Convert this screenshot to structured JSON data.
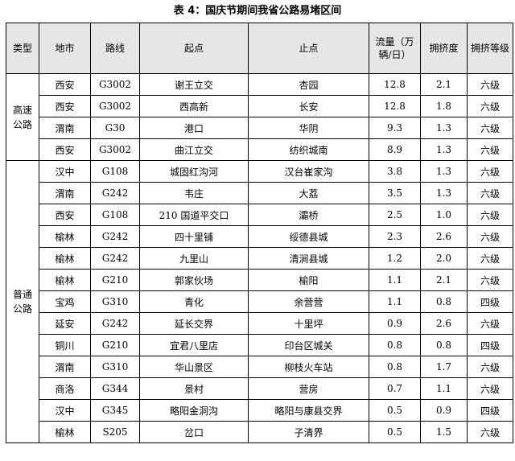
{
  "caption": "表 4：国庆节期间我省公路易堵区间",
  "headers": {
    "type": "类型",
    "city": "地市",
    "route": "路线",
    "start": "起点",
    "end": "止点",
    "flow": "流量（万辆/日）",
    "congestion": "拥挤度",
    "level": "拥挤等级"
  },
  "groups": [
    {
      "label": "高速公路",
      "rows": [
        {
          "city": "西安",
          "route": "G3002",
          "start": "谢王立交",
          "end": "杏园",
          "flow": "12.8",
          "congestion": "2.1",
          "level": "六级"
        },
        {
          "city": "西安",
          "route": "G3002",
          "start": "西高新",
          "end": "长安",
          "flow": "12.8",
          "congestion": "1.8",
          "level": "六级"
        },
        {
          "city": "渭南",
          "route": "G30",
          "start": "港口",
          "end": "华阴",
          "flow": "9.3",
          "congestion": "1.3",
          "level": "六级"
        },
        {
          "city": "西安",
          "route": "G3002",
          "start": "曲江立交",
          "end": "纺织城南",
          "flow": "8.9",
          "congestion": "1.3",
          "level": "六级"
        }
      ]
    },
    {
      "label": "普通公路",
      "rows": [
        {
          "city": "汉中",
          "route": "G108",
          "start": "城固红沟河",
          "end": "汉台崔家沟",
          "flow": "3.8",
          "congestion": "1.3",
          "level": "六级"
        },
        {
          "city": "渭南",
          "route": "G242",
          "start": "韦庄",
          "end": "大荔",
          "flow": "3.5",
          "congestion": "1.3",
          "level": "六级"
        },
        {
          "city": "西安",
          "route": "G108",
          "start": "210 国道平交口",
          "end": "灞桥",
          "flow": "2.5",
          "congestion": "1.0",
          "level": "六级"
        },
        {
          "city": "榆林",
          "route": "G242",
          "start": "四十里铺",
          "end": "绥德县城",
          "flow": "2.3",
          "congestion": "2.6",
          "level": "六级"
        },
        {
          "city": "榆林",
          "route": "G242",
          "start": "九里山",
          "end": "清涧县城",
          "flow": "1.2",
          "congestion": "2.0",
          "level": "六级"
        },
        {
          "city": "榆林",
          "route": "G210",
          "start": "郭家伙场",
          "end": "榆阳",
          "flow": "1.1",
          "congestion": "2.1",
          "level": "六级"
        },
        {
          "city": "宝鸡",
          "route": "G310",
          "start": "青化",
          "end": "余营营",
          "flow": "1.1",
          "congestion": "0.8",
          "level": "四级"
        },
        {
          "city": "延安",
          "route": "G242",
          "start": "延长交界",
          "end": "十里坪",
          "flow": "0.9",
          "congestion": "2.6",
          "level": "六级"
        },
        {
          "city": "铜川",
          "route": "G210",
          "start": "宜君八里店",
          "end": "印台区城关",
          "flow": "0.8",
          "congestion": "0.8",
          "level": "四级"
        },
        {
          "city": "渭南",
          "route": "G310",
          "start": "华山景区",
          "end": "柳枝火车站",
          "flow": "0.8",
          "congestion": "1.7",
          "level": "六级"
        },
        {
          "city": "商洛",
          "route": "G344",
          "start": "景村",
          "end": "营房",
          "flow": "0.7",
          "congestion": "1.1",
          "level": "六级"
        },
        {
          "city": "汉中",
          "route": "G345",
          "start": "略阳金洞沟",
          "end": "略阳与康县交界",
          "flow": "0.5",
          "congestion": "0.9",
          "level": "四级"
        },
        {
          "city": "榆林",
          "route": "S205",
          "start": "岔口",
          "end": "子清界",
          "flow": "0.5",
          "congestion": "1.5",
          "level": "六级"
        }
      ]
    }
  ]
}
